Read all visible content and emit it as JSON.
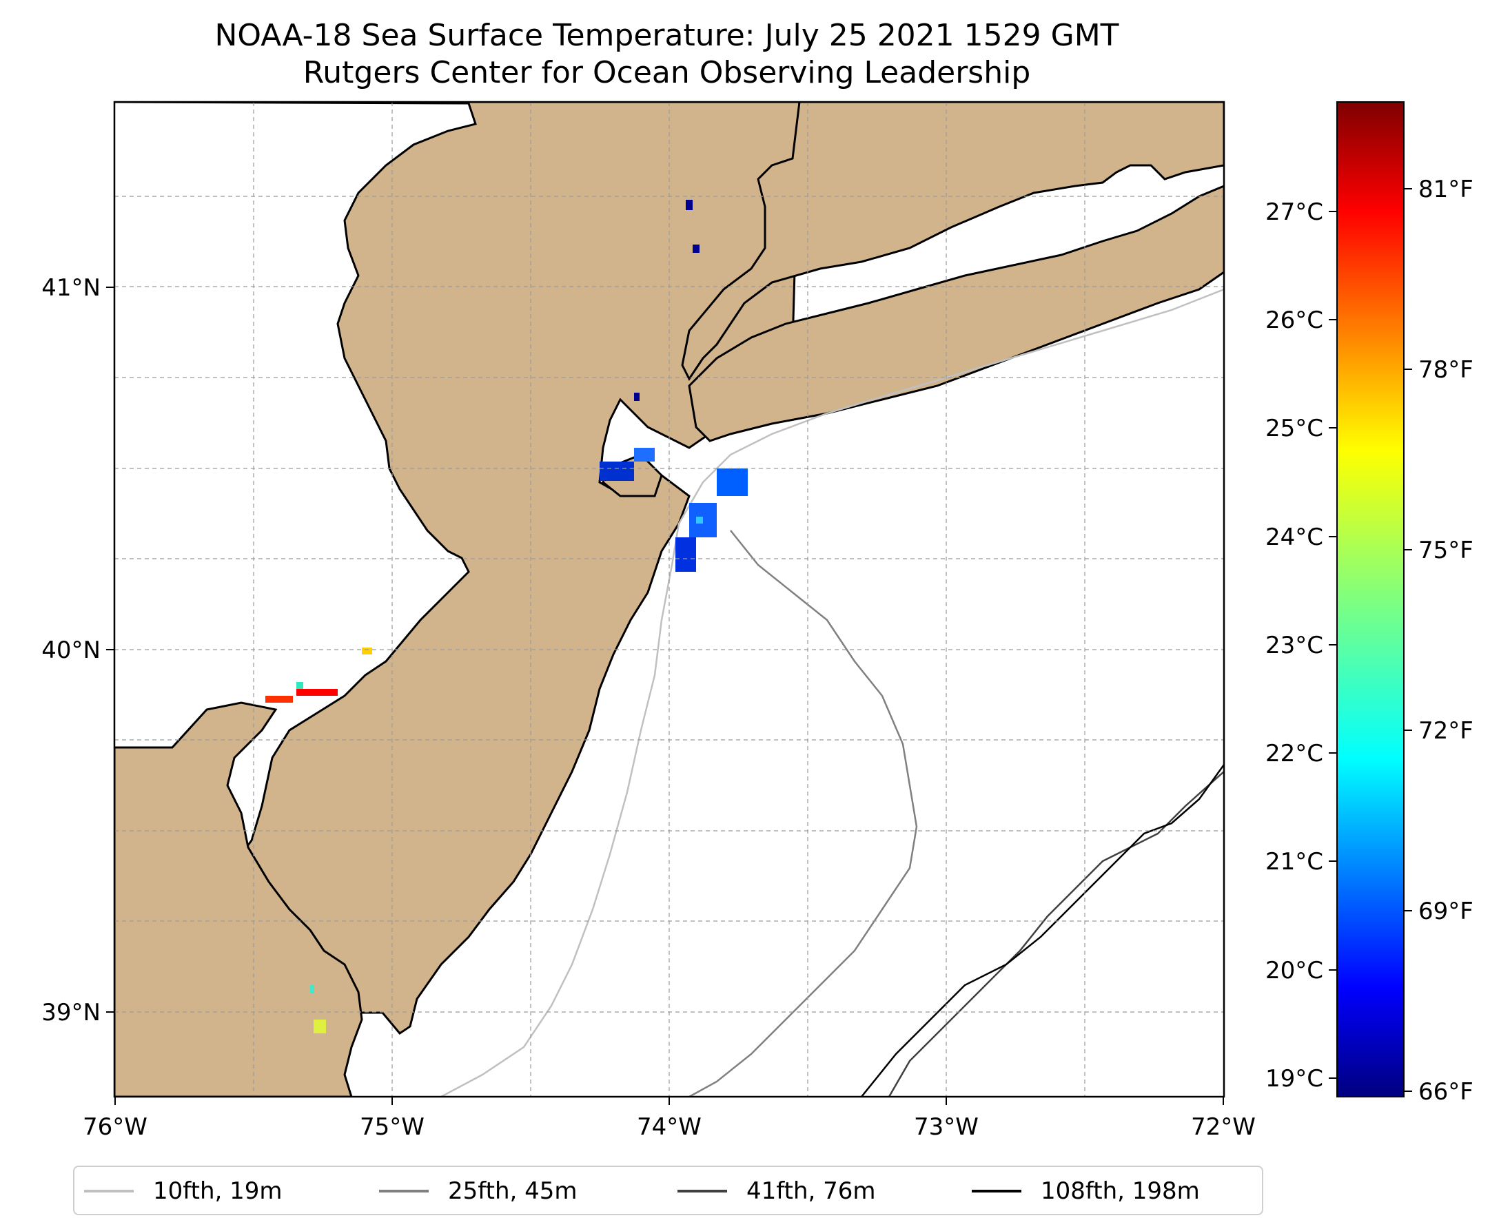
{
  "title": {
    "line1": "NOAA-18 Sea Surface Temperature: July 25 2021 1529 GMT",
    "line2": "Rutgers Center for Ocean Observing Leadership"
  },
  "map": {
    "lon_range": [
      -76,
      -72
    ],
    "lat_range": [
      38.75,
      41.55
    ],
    "x_ticks": [
      "76°W",
      "75°W",
      "74°W",
      "73°W",
      "72°W"
    ],
    "y_ticks": [
      "41°N",
      "40°N",
      "39°N"
    ],
    "land_color": "#d2b48c",
    "ocean_color": "#ffffff",
    "grid": true
  },
  "colorbar": {
    "colormap": "jet",
    "celsius_ticks": [
      "27°C",
      "26°C",
      "25°C",
      "24°C",
      "23°C",
      "22°C",
      "21°C",
      "20°C",
      "19°C"
    ],
    "fahrenheit_ticks": [
      "81°F",
      "78°F",
      "75°F",
      "72°F",
      "69°F",
      "66°F"
    ],
    "colors": [
      "#00007f",
      "#0000ff",
      "#007fff",
      "#00ffff",
      "#7fff7f",
      "#ffff00",
      "#ff7f00",
      "#ff0000",
      "#7f0000"
    ]
  },
  "legend": {
    "items": [
      {
        "label": "10fth, 19m",
        "color": "#c0c0c0"
      },
      {
        "label": "25fth, 45m",
        "color": "#808080"
      },
      {
        "label": "41fth, 76m",
        "color": "#404040"
      },
      {
        "label": "108fth, 198m",
        "color": "#000000"
      }
    ]
  }
}
